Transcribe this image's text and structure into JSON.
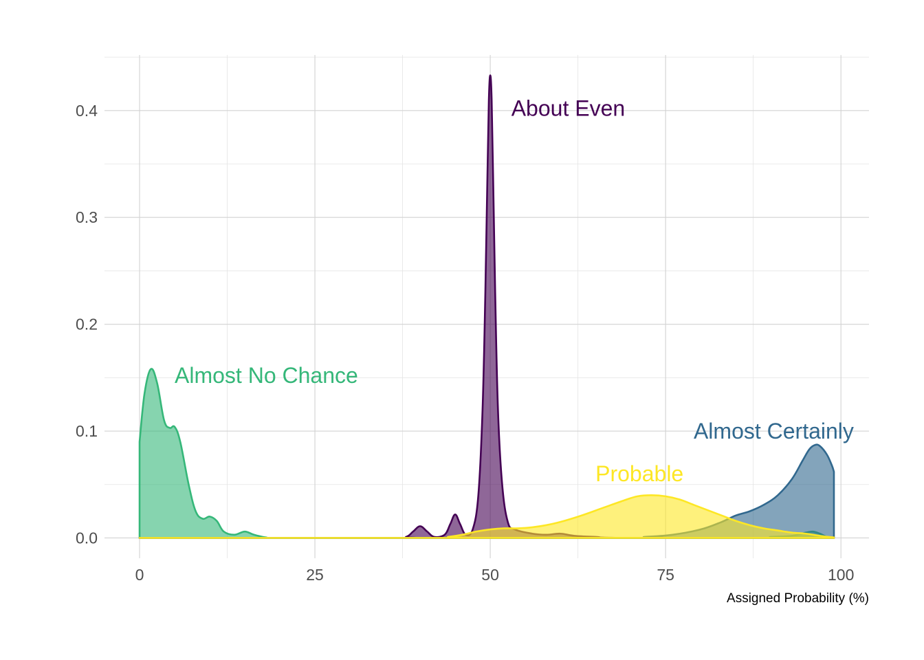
{
  "chart_data": {
    "type": "area",
    "xlabel": "Assigned Probability (%)",
    "ylabel": "",
    "xlim": [
      -5,
      104
    ],
    "ylim": [
      -0.019,
      0.452
    ],
    "x_ticks": [
      0,
      25,
      50,
      75,
      100
    ],
    "y_ticks": [
      0.0,
      0.1,
      0.2,
      0.3,
      0.4
    ],
    "y_tick_labels": [
      "0.0",
      "0.1",
      "0.2",
      "0.3",
      "0.4"
    ],
    "grid": true,
    "legend": "none (direct labels)",
    "series": [
      {
        "name": "About Even",
        "color": "#440154",
        "label_at": [
          53,
          0.395
        ],
        "points": [
          [
            0,
            0
          ],
          [
            36,
            0
          ],
          [
            38,
            0.001
          ],
          [
            39,
            0.006
          ],
          [
            40,
            0.011
          ],
          [
            41,
            0.006
          ],
          [
            42,
            0.001
          ],
          [
            43.5,
            0.003
          ],
          [
            44.3,
            0.013
          ],
          [
            45,
            0.022
          ],
          [
            45.7,
            0.013
          ],
          [
            46.5,
            0.003
          ],
          [
            47.5,
            0.008
          ],
          [
            48.3,
            0.04
          ],
          [
            48.9,
            0.12
          ],
          [
            49.3,
            0.23
          ],
          [
            49.6,
            0.34
          ],
          [
            49.8,
            0.41
          ],
          [
            50,
            0.433
          ],
          [
            50.2,
            0.41
          ],
          [
            50.4,
            0.34
          ],
          [
            50.7,
            0.23
          ],
          [
            51.1,
            0.12
          ],
          [
            51.7,
            0.05
          ],
          [
            52.5,
            0.015
          ],
          [
            53.5,
            0.008
          ],
          [
            56,
            0.004
          ],
          [
            58,
            0.003
          ],
          [
            60,
            0.004
          ],
          [
            62,
            0.002
          ],
          [
            65,
            0.001
          ],
          [
            70,
            0
          ],
          [
            99,
            0
          ]
        ]
      },
      {
        "name": "Almost No Chance",
        "color": "#35B779",
        "label_at": [
          5,
          0.145
        ],
        "points": [
          [
            0,
            0.09
          ],
          [
            0.7,
            0.135
          ],
          [
            1.6,
            0.158
          ],
          [
            2.5,
            0.145
          ],
          [
            3.5,
            0.11
          ],
          [
            4.3,
            0.103
          ],
          [
            5,
            0.104
          ],
          [
            5.8,
            0.09
          ],
          [
            7,
            0.05
          ],
          [
            8,
            0.025
          ],
          [
            9,
            0.018
          ],
          [
            10,
            0.02
          ],
          [
            11,
            0.016
          ],
          [
            12,
            0.006
          ],
          [
            13.5,
            0.003
          ],
          [
            15,
            0.006
          ],
          [
            16.3,
            0.003
          ],
          [
            18,
            0.0005
          ],
          [
            20,
            0
          ],
          [
            35,
            0
          ],
          [
            86,
            0
          ],
          [
            90,
            0.001
          ],
          [
            93,
            0.002
          ],
          [
            95,
            0.005
          ],
          [
            96,
            0.006
          ],
          [
            97,
            0.004
          ],
          [
            98,
            0.001
          ],
          [
            99,
            0
          ]
        ]
      },
      {
        "name": "Almost Certainly",
        "color": "#31688E",
        "label_at": [
          79,
          0.093
        ],
        "points": [
          [
            0,
            0
          ],
          [
            68,
            0
          ],
          [
            72,
            0.001
          ],
          [
            76,
            0.003
          ],
          [
            80,
            0.008
          ],
          [
            83,
            0.015
          ],
          [
            85,
            0.021
          ],
          [
            87,
            0.025
          ],
          [
            89,
            0.031
          ],
          [
            91,
            0.04
          ],
          [
            93,
            0.055
          ],
          [
            94.5,
            0.072
          ],
          [
            95.5,
            0.083
          ],
          [
            96.3,
            0.087
          ],
          [
            97,
            0.086
          ],
          [
            98,
            0.078
          ],
          [
            98.7,
            0.068
          ],
          [
            99,
            0.062
          ]
        ]
      },
      {
        "name": "Probable",
        "color": "#FDE725",
        "label_at": [
          65,
          0.053
        ],
        "points": [
          [
            0,
            0
          ],
          [
            42,
            0
          ],
          [
            44,
            0.001
          ],
          [
            46,
            0.003
          ],
          [
            48,
            0.006
          ],
          [
            50,
            0.008
          ],
          [
            52,
            0.009
          ],
          [
            54,
            0.009
          ],
          [
            56,
            0.01
          ],
          [
            58,
            0.012
          ],
          [
            60,
            0.015
          ],
          [
            63,
            0.021
          ],
          [
            66,
            0.028
          ],
          [
            69,
            0.035
          ],
          [
            71,
            0.039
          ],
          [
            73,
            0.04
          ],
          [
            75,
            0.039
          ],
          [
            77,
            0.036
          ],
          [
            79,
            0.031
          ],
          [
            81,
            0.026
          ],
          [
            83,
            0.021
          ],
          [
            85,
            0.016
          ],
          [
            87,
            0.012
          ],
          [
            89,
            0.009
          ],
          [
            91,
            0.007
          ],
          [
            93,
            0.005
          ],
          [
            95,
            0.004
          ],
          [
            97,
            0.002
          ],
          [
            99,
            0.0005
          ]
        ]
      }
    ]
  }
}
